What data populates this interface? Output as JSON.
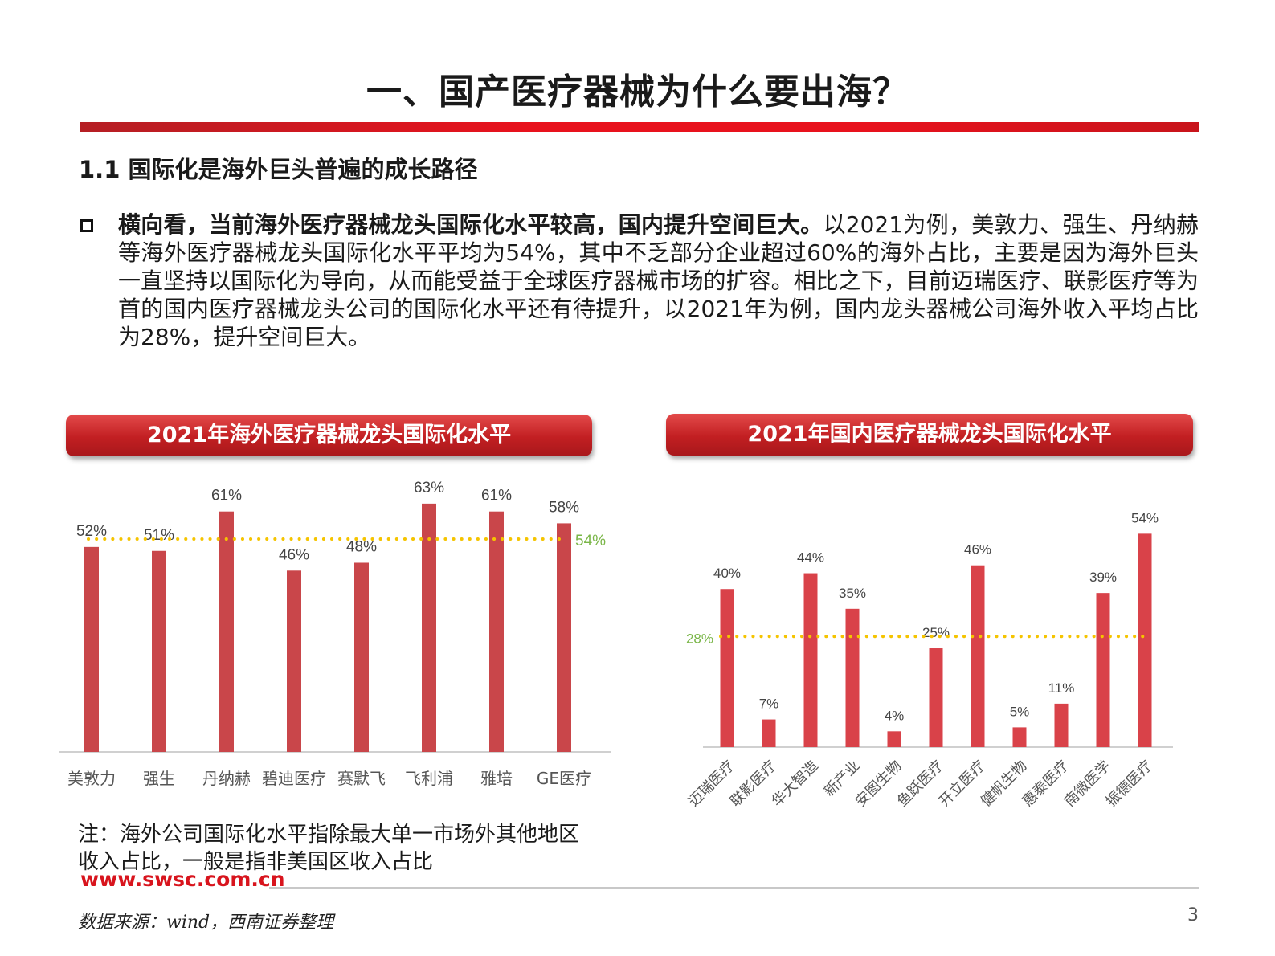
{
  "title": "一、国产医疗器械为什么要出海？",
  "section_title": "1.1 国际化是海外巨头普遍的成长路径",
  "bullet": {
    "lead": "横向看，当前海外医疗器械龙头国际化水平较高，国内提升空间巨大。",
    "body": "以2021为例，美敦力、强生、丹纳赫等海外医疗器械龙头国际化水平平均为54%，其中不乏部分企业超过60%的海外占比，主要是因为海外巨头一直坚持以国际化为导向，从而能受益于全球医疗器械市场的扩容。相比之下，目前迈瑞医疗、联影医疗等为首的国内医疗器械龙头公司的国际化水平还有待提升，以2021年为例，国内龙头器械公司海外收入平均占比为28%，提升空间巨大。"
  },
  "chart_titles": {
    "left": "2021年海外医疗器械龙头国际化水平",
    "right": "2021年国内医疗器械龙头国际化水平"
  },
  "chart_data": [
    {
      "type": "bar",
      "title": "2021年海外医疗器械龙头国际化水平",
      "categories": [
        "美敦力",
        "强生",
        "丹纳赫",
        "碧迪医疗",
        "赛默飞",
        "飞利浦",
        "雅培",
        "GE医疗"
      ],
      "values": [
        52,
        51,
        61,
        46,
        48,
        63,
        61,
        58
      ],
      "labels": [
        "52%",
        "51%",
        "61%",
        "46%",
        "48%",
        "63%",
        "61%",
        "58%"
      ],
      "average": 54,
      "average_label": "54%",
      "unit": "%",
      "ylim": [
        0,
        75
      ],
      "bar_color": "#c9464a",
      "average_line_color": "#f5c400",
      "average_label_color": "#7ab648",
      "label_rotation": "none"
    },
    {
      "type": "bar",
      "title": "2021年国内医疗器械龙头国际化水平",
      "categories": [
        "迈瑞医疗",
        "联影医疗",
        "华大智造",
        "新产业",
        "安图生物",
        "鱼跃医疗",
        "开立医疗",
        "健帆生物",
        "惠泰医疗",
        "南微医学",
        "振德医疗"
      ],
      "values": [
        40,
        7,
        44,
        35,
        4,
        25,
        46,
        5,
        11,
        39,
        54
      ],
      "labels": [
        "40%",
        "7%",
        "44%",
        "35%",
        "4%",
        "25%",
        "46%",
        "5%",
        "11%",
        "39%",
        "54%"
      ],
      "average": 28,
      "average_label": "28%",
      "unit": "%",
      "ylim": [
        0,
        62
      ],
      "bar_color": "#d94249",
      "average_line_color": "#f5c400",
      "average_label_color": "#7ab648",
      "label_rotation": "rotated"
    }
  ],
  "note": "注：海外公司国际化水平指除最大单一市场外其他地区收入占比，一般是指非美国区收入占比",
  "footer": {
    "url": "www.swsc.com.cn",
    "source": "数据来源：wind，西南证券整理",
    "page": "3"
  }
}
